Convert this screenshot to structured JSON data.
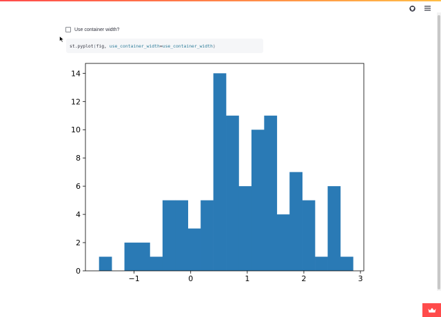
{
  "header": {
    "icons": [
      "github-icon",
      "hamburger-menu-icon"
    ]
  },
  "checkbox": {
    "label": "Use container width?",
    "checked": false
  },
  "code": {
    "fn": "st.pyplot",
    "open_paren": "(",
    "arg1": "fig, ",
    "kwarg": "use_container_width",
    "eq": "=",
    "value": "use_container_width",
    "close_paren": ")"
  },
  "chart_data": {
    "type": "bar",
    "title": "",
    "xlabel": "",
    "ylabel": "",
    "xlim": [
      -1.86,
      3.06
    ],
    "ylim": [
      0,
      14.7
    ],
    "xticks": [
      -1,
      0,
      1,
      2,
      3
    ],
    "xtick_labels": [
      "−1",
      "0",
      "1",
      "2",
      "3"
    ],
    "yticks": [
      0,
      2,
      4,
      6,
      8,
      10,
      12,
      14
    ],
    "ytick_labels": [
      "0",
      "2",
      "4",
      "6",
      "8",
      "10",
      "12",
      "14"
    ],
    "bin_width": 0.2245,
    "bin_start": -1.62,
    "values": [
      1,
      0,
      2,
      2,
      1,
      5,
      5,
      3,
      5,
      14,
      11,
      6,
      10,
      11,
      4,
      7,
      5,
      1,
      6,
      1
    ],
    "bar_color": "#2a7ab5",
    "grid": false
  },
  "colors": {
    "accent": "#ff4b4b",
    "bar": "#2a7ab5"
  }
}
